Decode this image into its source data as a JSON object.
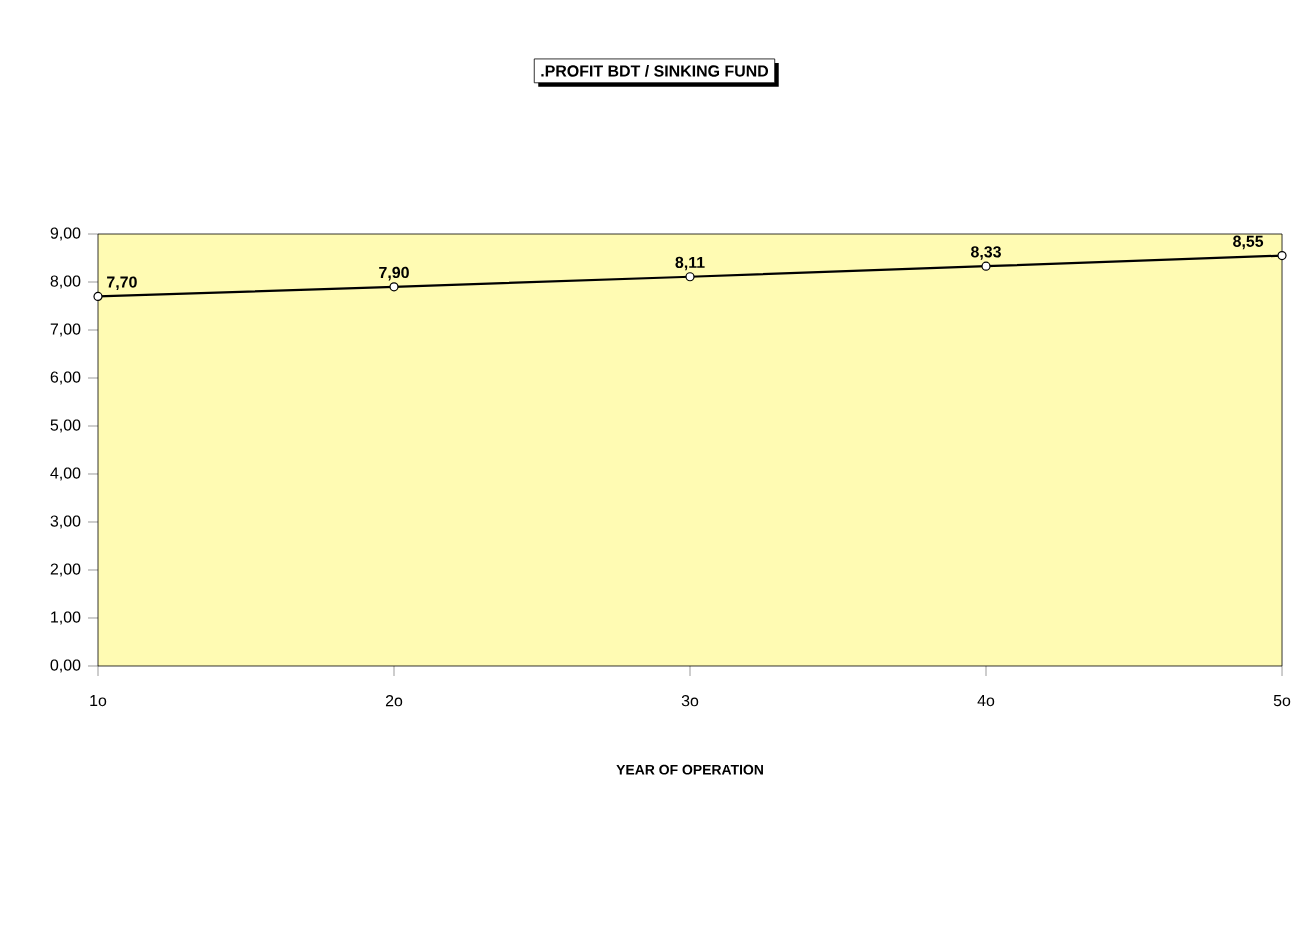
{
  "chart_data": {
    "type": "line",
    "title": ".PROFIT BDT / SINKING FUND",
    "xlabel": "YEAR OF OPERATION",
    "categories": [
      "1o",
      "2o",
      "3o",
      "4o",
      "5o"
    ],
    "series": [
      {
        "color": "#000000",
        "values": [
          7.7,
          7.9,
          8.11,
          8.33,
          8.55
        ],
        "value_labels": [
          "7,70",
          "7,90",
          "8,11",
          "8,33",
          "8,55"
        ]
      }
    ],
    "ylim": [
      0,
      9
    ],
    "yticks": [
      {
        "value": 0,
        "label": "0,00"
      },
      {
        "value": 1,
        "label": "1,00"
      },
      {
        "value": 2,
        "label": "2,00"
      },
      {
        "value": 3,
        "label": "3,00"
      },
      {
        "value": 4,
        "label": "4,00"
      },
      {
        "value": 5,
        "label": "5,00"
      },
      {
        "value": 6,
        "label": "6,00"
      },
      {
        "value": 7,
        "label": "7,00"
      },
      {
        "value": 8,
        "label": "8,00"
      },
      {
        "value": 9,
        "label": "9,00"
      }
    ],
    "marker": "circle",
    "line_style": "solid",
    "grid": false
  }
}
